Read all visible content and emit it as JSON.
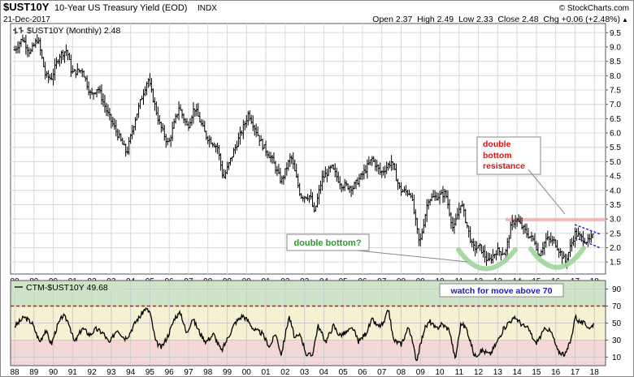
{
  "header": {
    "symbol": "$UST10Y",
    "name": "10-Year US Treasury Yield (EOD)",
    "exchange": "INDX",
    "date": "21-Dec-2017",
    "brand": "© StockCharts.com",
    "ohlc": "Open 2.37  High 2.49  Low 2.33  Close 2.48  Chg +0.06 (+2.48%)",
    "chg_arrow": "▲"
  },
  "price_panel": {
    "legend": "$UST10Y (Monthly) 2.48"
  },
  "rsi_panel": {
    "legend": "CTM-$UST10Y 49.68"
  },
  "annotations": {
    "double_bottom": "double bottom?",
    "resistance_line1": "double",
    "resistance_line2": "bottom",
    "resistance_line3": "resistance",
    "watch": "watch for move above 70"
  },
  "colors": {
    "grid": "#d8d8d8",
    "frame": "#555555",
    "resistance_band": "#f2b8b8",
    "annotation_green": "#2e9a2e",
    "annotation_red": "#e01010",
    "annotation_blue": "#1a1acc",
    "zone_high": "#cfe3c8",
    "zone_mid": "#f5f1d2",
    "zone_low": "#f4d7d7",
    "dash_line": "#d01010"
  },
  "chart_data": [
    {
      "type": "ohlc",
      "name": "$UST10Y (Monthly)",
      "x_tick_labels": [
        "88",
        "89",
        "90",
        "91",
        "92",
        "93",
        "94",
        "95",
        "96",
        "97",
        "98",
        "99",
        "00",
        "01",
        "02",
        "03",
        "04",
        "05",
        "06",
        "07",
        "08",
        "09",
        "10",
        "11",
        "12",
        "13",
        "14",
        "15",
        "16",
        "17",
        "18"
      ],
      "y_tick_labels": [
        "1.5",
        "2.0",
        "2.5",
        "3.0",
        "3.5",
        "4.0",
        "4.5",
        "5.0",
        "5.5",
        "6.0",
        "6.5",
        "7.0",
        "7.5",
        "8.0",
        "8.5",
        "9.0",
        "9.5"
      ],
      "ylim": [
        1.25,
        9.65
      ],
      "xlim": [
        1988.0,
        2018.2
      ],
      "anchors": [
        [
          1988.0,
          8.9
        ],
        [
          1988.4,
          9.3
        ],
        [
          1988.8,
          8.8
        ],
        [
          1989.2,
          9.3
        ],
        [
          1989.6,
          8.0
        ],
        [
          1989.9,
          7.9
        ],
        [
          1990.3,
          8.7
        ],
        [
          1990.7,
          8.9
        ],
        [
          1990.95,
          8.1
        ],
        [
          1991.5,
          8.2
        ],
        [
          1991.95,
          7.3
        ],
        [
          1992.3,
          7.6
        ],
        [
          1992.8,
          6.7
        ],
        [
          1993.3,
          6.0
        ],
        [
          1993.8,
          5.3
        ],
        [
          1994.2,
          6.4
        ],
        [
          1994.6,
          7.3
        ],
        [
          1994.9,
          7.9
        ],
        [
          1995.5,
          6.3
        ],
        [
          1995.95,
          5.6
        ],
        [
          1996.5,
          6.9
        ],
        [
          1996.95,
          6.2
        ],
        [
          1997.3,
          6.9
        ],
        [
          1997.9,
          5.9
        ],
        [
          1998.5,
          5.5
        ],
        [
          1998.8,
          4.4
        ],
        [
          1999.3,
          5.3
        ],
        [
          1999.95,
          6.4
        ],
        [
          2000.1,
          6.7
        ],
        [
          2000.8,
          5.6
        ],
        [
          2001.3,
          5.1
        ],
        [
          2001.8,
          4.3
        ],
        [
          2002.3,
          5.2
        ],
        [
          2002.8,
          3.8
        ],
        [
          2003.3,
          3.8
        ],
        [
          2003.5,
          3.2
        ],
        [
          2003.9,
          4.4
        ],
        [
          2004.4,
          4.8
        ],
        [
          2004.9,
          4.2
        ],
        [
          2005.5,
          4.1
        ],
        [
          2005.95,
          4.5
        ],
        [
          2006.5,
          5.1
        ],
        [
          2006.95,
          4.6
        ],
        [
          2007.5,
          5.0
        ],
        [
          2007.95,
          4.0
        ],
        [
          2008.5,
          3.9
        ],
        [
          2008.95,
          2.1
        ],
        [
          2009.4,
          3.7
        ],
        [
          2009.95,
          3.8
        ],
        [
          2010.3,
          3.9
        ],
        [
          2010.7,
          2.6
        ],
        [
          2011.1,
          3.6
        ],
        [
          2011.7,
          2.0
        ],
        [
          2012.1,
          2.0
        ],
        [
          2012.5,
          1.5
        ],
        [
          2012.95,
          1.9
        ],
        [
          2013.4,
          1.8
        ],
        [
          2013.7,
          2.8
        ],
        [
          2013.95,
          3.0
        ],
        [
          2014.5,
          2.5
        ],
        [
          2014.95,
          2.2
        ],
        [
          2015.1,
          1.7
        ],
        [
          2015.5,
          2.3
        ],
        [
          2015.95,
          2.2
        ],
        [
          2016.5,
          1.5
        ],
        [
          2016.9,
          2.3
        ],
        [
          2017.0,
          2.5
        ],
        [
          2017.4,
          2.3
        ],
        [
          2017.7,
          2.2
        ],
        [
          2017.97,
          2.48
        ]
      ],
      "resistance": {
        "y": 2.98,
        "x_from": 2013.4,
        "x_to": 2018.2
      },
      "last": {
        "open": 2.37,
        "high": 2.49,
        "low": 2.33,
        "close": 2.48
      }
    },
    {
      "type": "line",
      "name": "CTM-$UST10Y",
      "y_tick_labels": [
        "10",
        "30",
        "50",
        "70",
        "90"
      ],
      "ylim": [
        0,
        100
      ],
      "zones": [
        [
          70,
          100
        ],
        [
          30,
          70
        ],
        [
          0,
          30
        ]
      ],
      "threshold": 70,
      "anchors": [
        [
          1988.0,
          46
        ],
        [
          1988.5,
          57
        ],
        [
          1988.9,
          50
        ],
        [
          1989.3,
          28
        ],
        [
          1989.6,
          42
        ],
        [
          1989.9,
          25
        ],
        [
          1990.2,
          46
        ],
        [
          1990.5,
          59
        ],
        [
          1990.8,
          51
        ],
        [
          1991.1,
          27
        ],
        [
          1991.5,
          44
        ],
        [
          1991.9,
          36
        ],
        [
          1992.2,
          43
        ],
        [
          1992.6,
          38
        ],
        [
          1992.9,
          26
        ],
        [
          1993.3,
          43
        ],
        [
          1993.7,
          32
        ],
        [
          1993.9,
          36
        ],
        [
          1994.3,
          53
        ],
        [
          1994.5,
          58
        ],
        [
          1994.75,
          67
        ],
        [
          1995.0,
          63
        ],
        [
          1995.3,
          28
        ],
        [
          1995.6,
          21
        ],
        [
          1995.95,
          36
        ],
        [
          1996.3,
          57
        ],
        [
          1996.6,
          62
        ],
        [
          1996.9,
          37
        ],
        [
          1997.2,
          56
        ],
        [
          1997.6,
          38
        ],
        [
          1997.9,
          28
        ],
        [
          1998.3,
          37
        ],
        [
          1998.7,
          17
        ],
        [
          1999.0,
          31
        ],
        [
          1999.4,
          50
        ],
        [
          1999.8,
          59
        ],
        [
          2000.1,
          52
        ],
        [
          2000.4,
          42
        ],
        [
          2000.8,
          38
        ],
        [
          2001.2,
          22
        ],
        [
          2001.5,
          38
        ],
        [
          2001.8,
          13
        ],
        [
          2002.2,
          58
        ],
        [
          2002.5,
          32
        ],
        [
          2002.8,
          36
        ],
        [
          2003.1,
          13
        ],
        [
          2003.4,
          12
        ],
        [
          2003.7,
          47
        ],
        [
          2004.1,
          28
        ],
        [
          2004.5,
          47
        ],
        [
          2004.8,
          36
        ],
        [
          2005.1,
          38
        ],
        [
          2005.5,
          44
        ],
        [
          2005.8,
          28
        ],
        [
          2006.2,
          39
        ],
        [
          2006.5,
          54
        ],
        [
          2006.8,
          46
        ],
        [
          2007.1,
          49
        ],
        [
          2007.35,
          67
        ],
        [
          2007.6,
          30
        ],
        [
          2008.0,
          25
        ],
        [
          2008.4,
          46
        ],
        [
          2008.8,
          6
        ],
        [
          2009.2,
          43
        ],
        [
          2009.5,
          52
        ],
        [
          2009.8,
          43
        ],
        [
          2010.1,
          49
        ],
        [
          2010.5,
          42
        ],
        [
          2010.8,
          7
        ],
        [
          2011.1,
          50
        ],
        [
          2011.4,
          43
        ],
        [
          2011.8,
          11
        ],
        [
          2012.2,
          18
        ],
        [
          2012.6,
          13
        ],
        [
          2012.9,
          25
        ],
        [
          2013.3,
          43
        ],
        [
          2013.6,
          52
        ],
        [
          2013.95,
          56
        ],
        [
          2014.3,
          47
        ],
        [
          2014.6,
          43
        ],
        [
          2014.95,
          26
        ],
        [
          2015.2,
          34
        ],
        [
          2015.5,
          45
        ],
        [
          2015.8,
          38
        ],
        [
          2016.1,
          17
        ],
        [
          2016.5,
          13
        ],
        [
          2016.8,
          31
        ],
        [
          2017.0,
          58
        ],
        [
          2017.2,
          52
        ],
        [
          2017.5,
          49
        ],
        [
          2017.8,
          44
        ],
        [
          2017.97,
          50
        ]
      ]
    }
  ]
}
